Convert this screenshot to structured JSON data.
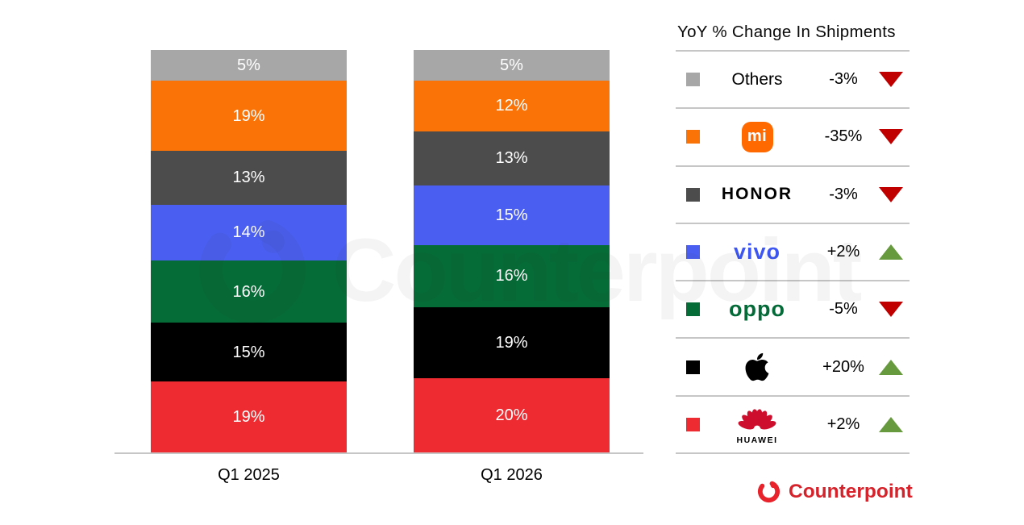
{
  "watermark": "Counterpoint",
  "chart_data": {
    "type": "bar",
    "stacked": true,
    "title": "",
    "categories": [
      "Q1 2025",
      "Q1 2026"
    ],
    "value_suffix": "%",
    "series": [
      {
        "name": "Others",
        "color": "#a7a7a7",
        "values": [
          5,
          5
        ]
      },
      {
        "name": "Xiaomi",
        "color": "#f97306",
        "values": [
          19,
          12
        ]
      },
      {
        "name": "HONOR",
        "color": "#4c4c4c",
        "values": [
          13,
          13
        ]
      },
      {
        "name": "vivo",
        "color": "#4a5ff1",
        "values": [
          14,
          15
        ]
      },
      {
        "name": "OPPO",
        "color": "#056b37",
        "values": [
          16,
          16
        ]
      },
      {
        "name": "Apple",
        "color": "#000000",
        "values": [
          15,
          19
        ]
      },
      {
        "name": "HUAWEI",
        "color": "#ee2b31",
        "values": [
          19,
          20
        ]
      }
    ],
    "legend_position": "right",
    "grid": false
  },
  "legend": {
    "title": "YoY % Change In Shipments",
    "colors": {
      "up": "#679a3e",
      "down": "#c00000"
    },
    "rows": [
      {
        "brand": "Others",
        "label": "Others",
        "change": "-3%",
        "direction": "down"
      },
      {
        "brand": "Xiaomi",
        "label": "mi",
        "change": "-35%",
        "direction": "down"
      },
      {
        "brand": "HONOR",
        "label": "HONOR",
        "change": "-3%",
        "direction": "down"
      },
      {
        "brand": "vivo",
        "label": "vivo",
        "change": "+2%",
        "direction": "up"
      },
      {
        "brand": "OPPO",
        "label": "oppo",
        "change": "-5%",
        "direction": "down"
      },
      {
        "brand": "Apple",
        "label": "",
        "change": "+20%",
        "direction": "up"
      },
      {
        "brand": "HUAWEI",
        "label": "HUAWEI",
        "change": "+2%",
        "direction": "up"
      }
    ]
  },
  "footer": {
    "brand": "Counterpoint"
  }
}
